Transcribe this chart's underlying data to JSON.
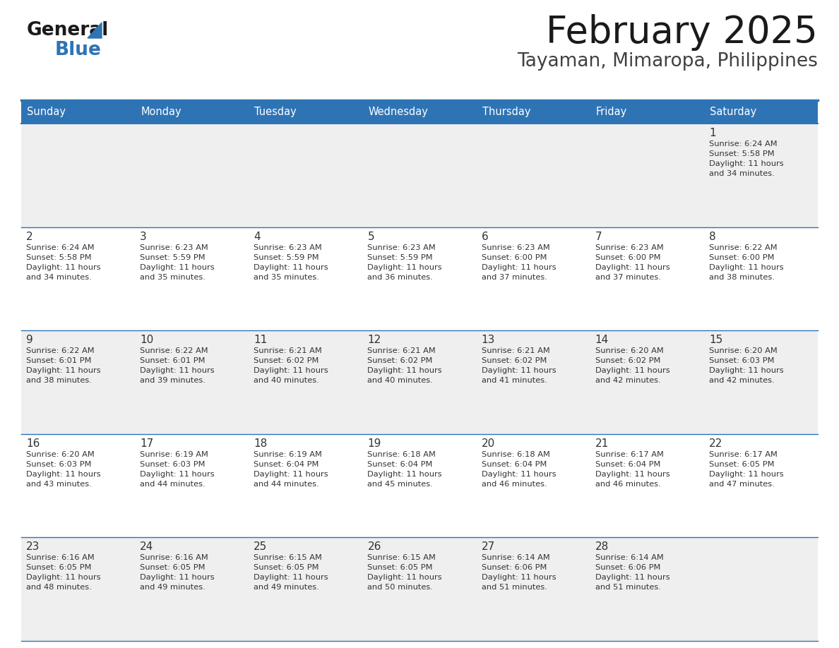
{
  "title": "February 2025",
  "subtitle": "Tayaman, Mimaropa, Philippines",
  "header_bg": "#2E74B5",
  "header_text": "#FFFFFF",
  "cell_bg_even": "#EFEFEF",
  "cell_bg_odd": "#FFFFFF",
  "border_color": "#2E74B5",
  "text_color": "#333333",
  "day_headers": [
    "Sunday",
    "Monday",
    "Tuesday",
    "Wednesday",
    "Thursday",
    "Friday",
    "Saturday"
  ],
  "days": [
    {
      "day": 1,
      "col": 6,
      "row": 0,
      "sunrise": "6:24 AM",
      "sunset": "5:58 PM",
      "daylight_min": "34 minutes."
    },
    {
      "day": 2,
      "col": 0,
      "row": 1,
      "sunrise": "6:24 AM",
      "sunset": "5:58 PM",
      "daylight_min": "34 minutes."
    },
    {
      "day": 3,
      "col": 1,
      "row": 1,
      "sunrise": "6:23 AM",
      "sunset": "5:59 PM",
      "daylight_min": "35 minutes."
    },
    {
      "day": 4,
      "col": 2,
      "row": 1,
      "sunrise": "6:23 AM",
      "sunset": "5:59 PM",
      "daylight_min": "35 minutes."
    },
    {
      "day": 5,
      "col": 3,
      "row": 1,
      "sunrise": "6:23 AM",
      "sunset": "5:59 PM",
      "daylight_min": "36 minutes."
    },
    {
      "day": 6,
      "col": 4,
      "row": 1,
      "sunrise": "6:23 AM",
      "sunset": "6:00 PM",
      "daylight_min": "37 minutes."
    },
    {
      "day": 7,
      "col": 5,
      "row": 1,
      "sunrise": "6:23 AM",
      "sunset": "6:00 PM",
      "daylight_min": "37 minutes."
    },
    {
      "day": 8,
      "col": 6,
      "row": 1,
      "sunrise": "6:22 AM",
      "sunset": "6:00 PM",
      "daylight_min": "38 minutes."
    },
    {
      "day": 9,
      "col": 0,
      "row": 2,
      "sunrise": "6:22 AM",
      "sunset": "6:01 PM",
      "daylight_min": "38 minutes."
    },
    {
      "day": 10,
      "col": 1,
      "row": 2,
      "sunrise": "6:22 AM",
      "sunset": "6:01 PM",
      "daylight_min": "39 minutes."
    },
    {
      "day": 11,
      "col": 2,
      "row": 2,
      "sunrise": "6:21 AM",
      "sunset": "6:02 PM",
      "daylight_min": "40 minutes."
    },
    {
      "day": 12,
      "col": 3,
      "row": 2,
      "sunrise": "6:21 AM",
      "sunset": "6:02 PM",
      "daylight_min": "40 minutes."
    },
    {
      "day": 13,
      "col": 4,
      "row": 2,
      "sunrise": "6:21 AM",
      "sunset": "6:02 PM",
      "daylight_min": "41 minutes."
    },
    {
      "day": 14,
      "col": 5,
      "row": 2,
      "sunrise": "6:20 AM",
      "sunset": "6:02 PM",
      "daylight_min": "42 minutes."
    },
    {
      "day": 15,
      "col": 6,
      "row": 2,
      "sunrise": "6:20 AM",
      "sunset": "6:03 PM",
      "daylight_min": "42 minutes."
    },
    {
      "day": 16,
      "col": 0,
      "row": 3,
      "sunrise": "6:20 AM",
      "sunset": "6:03 PM",
      "daylight_min": "43 minutes."
    },
    {
      "day": 17,
      "col": 1,
      "row": 3,
      "sunrise": "6:19 AM",
      "sunset": "6:03 PM",
      "daylight_min": "44 minutes."
    },
    {
      "day": 18,
      "col": 2,
      "row": 3,
      "sunrise": "6:19 AM",
      "sunset": "6:04 PM",
      "daylight_min": "44 minutes."
    },
    {
      "day": 19,
      "col": 3,
      "row": 3,
      "sunrise": "6:18 AM",
      "sunset": "6:04 PM",
      "daylight_min": "45 minutes."
    },
    {
      "day": 20,
      "col": 4,
      "row": 3,
      "sunrise": "6:18 AM",
      "sunset": "6:04 PM",
      "daylight_min": "46 minutes."
    },
    {
      "day": 21,
      "col": 5,
      "row": 3,
      "sunrise": "6:17 AM",
      "sunset": "6:04 PM",
      "daylight_min": "46 minutes."
    },
    {
      "day": 22,
      "col": 6,
      "row": 3,
      "sunrise": "6:17 AM",
      "sunset": "6:05 PM",
      "daylight_min": "47 minutes."
    },
    {
      "day": 23,
      "col": 0,
      "row": 4,
      "sunrise": "6:16 AM",
      "sunset": "6:05 PM",
      "daylight_min": "48 minutes."
    },
    {
      "day": 24,
      "col": 1,
      "row": 4,
      "sunrise": "6:16 AM",
      "sunset": "6:05 PM",
      "daylight_min": "49 minutes."
    },
    {
      "day": 25,
      "col": 2,
      "row": 4,
      "sunrise": "6:15 AM",
      "sunset": "6:05 PM",
      "daylight_min": "49 minutes."
    },
    {
      "day": 26,
      "col": 3,
      "row": 4,
      "sunrise": "6:15 AM",
      "sunset": "6:05 PM",
      "daylight_min": "50 minutes."
    },
    {
      "day": 27,
      "col": 4,
      "row": 4,
      "sunrise": "6:14 AM",
      "sunset": "6:06 PM",
      "daylight_min": "51 minutes."
    },
    {
      "day": 28,
      "col": 5,
      "row": 4,
      "sunrise": "6:14 AM",
      "sunset": "6:06 PM",
      "daylight_min": "51 minutes."
    }
  ],
  "num_rows": 5,
  "num_cols": 7
}
